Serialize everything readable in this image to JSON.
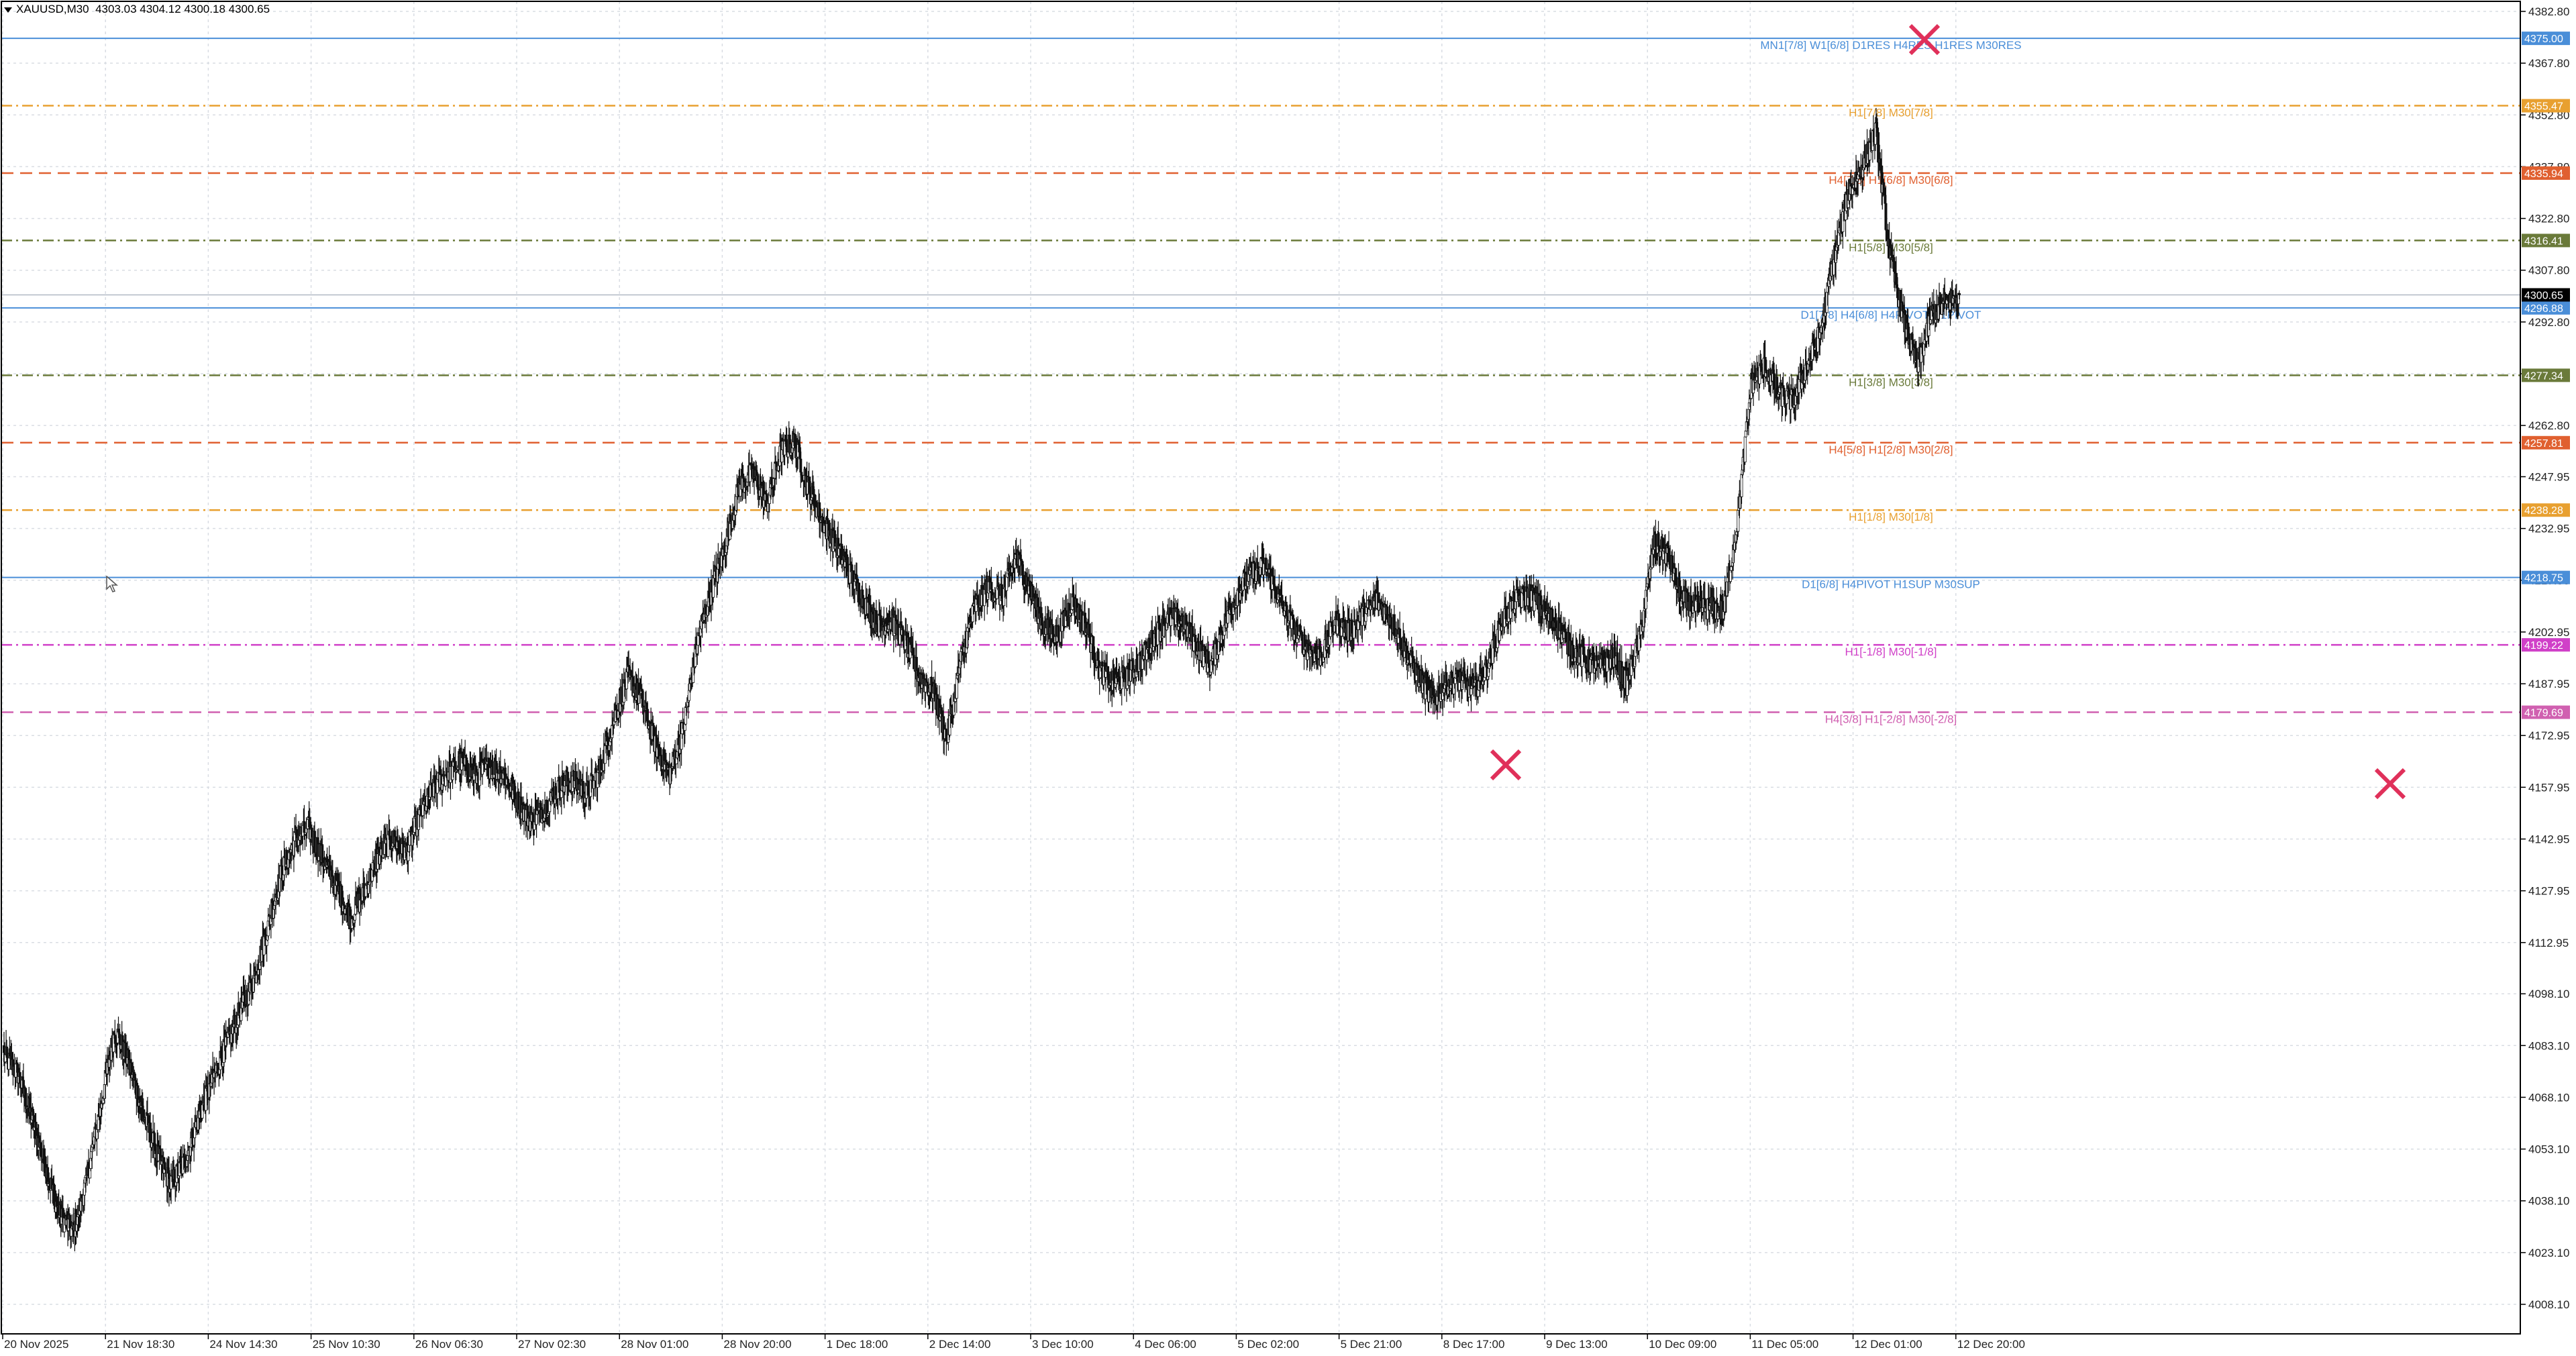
{
  "header": {
    "symbol": "XAUUSD,M30",
    "ohlc": "4303.03 4304.12 4300.18 4300.65"
  },
  "chart_data": {
    "type": "candlestick",
    "ylim": [
      4003.0,
      4390.0
    ],
    "grid": true,
    "price_ticks": [
      4382.8,
      4367.8,
      4352.8,
      4337.8,
      4322.8,
      4307.8,
      4292.8,
      4277.8,
      4262.8,
      4247.95,
      4232.95,
      4217.95,
      4202.95,
      4187.95,
      4172.95,
      4157.95,
      4142.95,
      4127.95,
      4112.95,
      4098.1,
      4083.1,
      4068.1,
      4053.1,
      4038.1,
      4023.1,
      4008.1
    ],
    "time_ticks": [
      "20 Nov 2025",
      "21 Nov 18:30",
      "24 Nov 14:30",
      "25 Nov 10:30",
      "26 Nov 06:30",
      "27 Nov 02:30",
      "28 Nov 01:00",
      "28 Nov 20:00",
      "1 Dec 18:00",
      "2 Dec 14:00",
      "3 Dec 10:00",
      "4 Dec 06:00",
      "5 Dec 02:00",
      "5 Dec 21:00",
      "8 Dec 17:00",
      "9 Dec 13:00",
      "10 Dec 09:00",
      "11 Dec 05:00",
      "12 Dec 01:00",
      "12 Dec 20:00"
    ],
    "current_price": "4300.65",
    "levels": [
      {
        "price": 4375.0,
        "label": "MN1[7/8] W1[6/8] D1RES H4RES H1RES M30RES",
        "color": "#4a8ed8",
        "style": "solid",
        "price_label": "4375.00"
      },
      {
        "price": 4355.47,
        "label": "H1[7/8] M30[7/8]",
        "color": "#e8a030",
        "style": "dashdot",
        "price_label": "4355.47"
      },
      {
        "price": 4335.94,
        "label": "H4[7/8] H1[6/8] M30[6/8]",
        "color": "#e06030",
        "style": "dash",
        "price_label": "4335.94"
      },
      {
        "price": 4316.41,
        "label": "H1[5/8] M30[5/8]",
        "color": "#6a7a3a",
        "style": "dashdot",
        "price_label": "4316.41"
      },
      {
        "price": 4296.88,
        "label": "D1[7/8] H4[6/8] H4PIVOT H1PIVOT",
        "color": "#4a8ed8",
        "style": "solid",
        "price_label": "4296.88"
      },
      {
        "price": 4277.34,
        "label": "H1[3/8] M30[3/8]",
        "color": "#6a7a3a",
        "style": "dashdot",
        "price_label": "4277.34"
      },
      {
        "price": 4257.81,
        "label": "H4[5/8] H1[2/8] M30[2/8]",
        "color": "#e06030",
        "style": "dash",
        "price_label": "4257.81"
      },
      {
        "price": 4238.28,
        "label": "H1[1/8] M30[1/8]",
        "color": "#e8a030",
        "style": "dashdot",
        "price_label": "4238.28"
      },
      {
        "price": 4218.75,
        "label": "D1[6/8] H4PIVOT H1SUP M30SUP",
        "color": "#4a8ed8",
        "style": "solid",
        "price_label": "4218.75"
      },
      {
        "price": 4199.22,
        "label": "H1[-1/8] M30[-1/8]",
        "color": "#d040c8",
        "style": "dashdot",
        "price_label": "4199.22"
      },
      {
        "price": 4179.69,
        "label": "H4[3/8] H1[-2/8] M30[-2/8]",
        "color": "#d060b0",
        "style": "dash",
        "price_label": "4179.69"
      }
    ],
    "closes": [
      4080.0,
      4075.0,
      4062.0,
      4048.0,
      4034.0,
      4029.0,
      4045.0,
      4066.0,
      4088.0,
      4078.0,
      4064.0,
      4052.0,
      4043.0,
      4049.0,
      4062.0,
      4073.0,
      4083.0,
      4093.0,
      4102.0,
      4117.0,
      4133.0,
      4143.0,
      4146.0,
      4137.0,
      4129.0,
      4120.0,
      4128.0,
      4138.0,
      4143.0,
      4139.0,
      4150.0,
      4158.0,
      4162.0,
      4165.0,
      4161.0,
      4164.0,
      4162.0,
      4154.0,
      4148.0,
      4152.0,
      4158.0,
      4160.0,
      4156.0,
      4163.0,
      4178.0,
      4190.0,
      4183.0,
      4170.0,
      4162.0,
      4175.0,
      4200.0,
      4215.0,
      4228.0,
      4245.0,
      4249.0,
      4240.0,
      4255.0,
      4258.0,
      4245.0,
      4235.0,
      4228.0,
      4220.0,
      4212.0,
      4205.0,
      4206.0,
      4200.0,
      4190.0,
      4186.0,
      4172.0,
      4195.0,
      4210.0,
      4216.0,
      4213.0,
      4225.0,
      4215.0,
      4204.0,
      4202.0,
      4212.0,
      4205.0,
      4192.0,
      4188.0,
      4190.0,
      4195.0,
      4202.0,
      4207.0,
      4206.0,
      4199.0,
      4193.0,
      4205.0,
      4215.0,
      4220.0,
      4222.0,
      4212.0,
      4204.0,
      4198.0,
      4196.0,
      4206.0,
      4203.0,
      4208.0,
      4212.0,
      4207.0,
      4198.0,
      4190.0,
      4183.0,
      4188.0,
      4189.0,
      4186.0,
      4193.0,
      4206.0,
      4212.0,
      4214.0,
      4209.0,
      4205.0,
      4198.0,
      4195.0,
      4193.0,
      4196.0,
      4188.0,
      4202.0,
      4229.0,
      4225.0,
      4212.0,
      4210.0,
      4210.0,
      4209.0,
      4235.0,
      4275.0,
      4280.0,
      4272.0,
      4270.0,
      4280.0,
      4290.0,
      4312.0,
      4330.0,
      4338.0,
      4348.0,
      4312.0,
      4293.0,
      4280.0,
      4295.0,
      4298.0,
      4300.65
    ]
  }
}
